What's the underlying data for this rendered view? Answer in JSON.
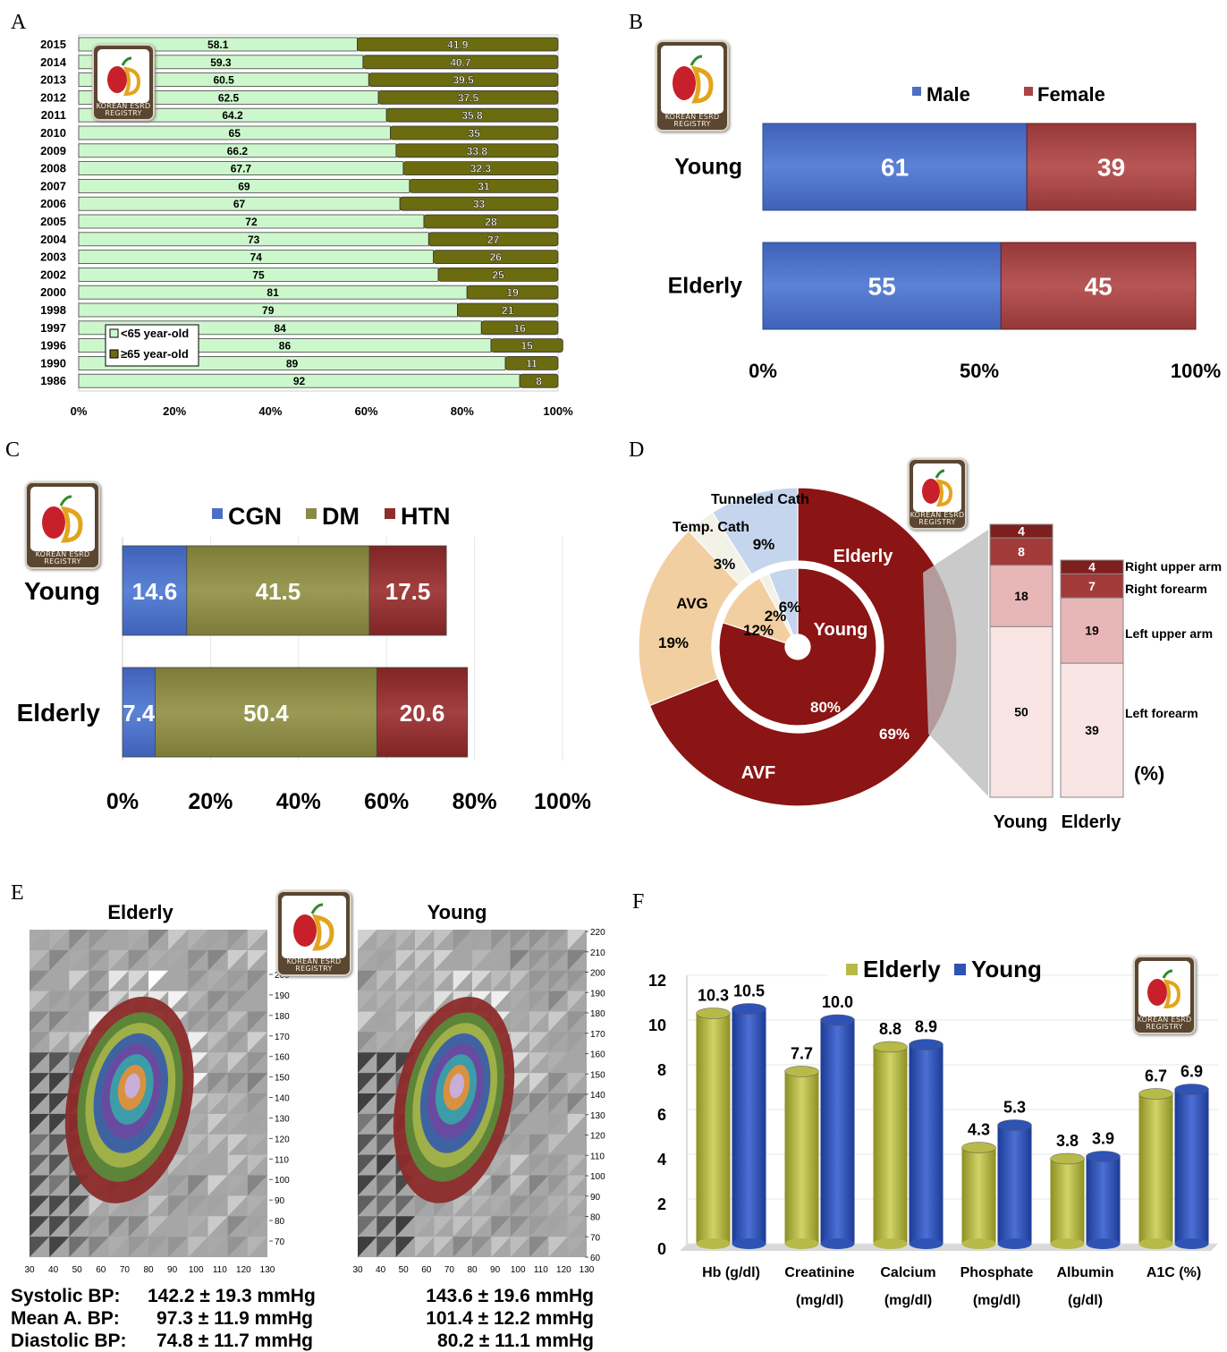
{
  "panel_labels": {
    "a": "A",
    "b": "B",
    "c": "C",
    "d": "D",
    "e": "E",
    "f": "F"
  },
  "logo": {
    "line1": "KOREAN ESRD",
    "line2": "REGISTRY"
  },
  "colors": {
    "light_green": "#ccf7cc",
    "olive": "#6b6b10",
    "male": "#4a6fc4",
    "female": "#a84444",
    "cgn": "#4a6fc4",
    "dm": "#8a8a45",
    "htn": "#8f2d2d",
    "avf": "#8b1414",
    "avg": "#f2cfa0",
    "temp_cath": "#f2f2e6",
    "tunneled_cath": "#c6d5ee",
    "elderly_bar": "#b7b949",
    "young_bar": "#2f52b5"
  },
  "chart_data": [
    {
      "id": "A",
      "type": "bar",
      "orientation": "horizontal",
      "stacked": true,
      "categories": [
        "2015",
        "2014",
        "2013",
        "2012",
        "2011",
        "2010",
        "2009",
        "2008",
        "2007",
        "2006",
        "2005",
        "2004",
        "2003",
        "2002",
        "2000",
        "1998",
        "1997",
        "1996",
        "1990",
        "1986"
      ],
      "series": [
        {
          "name": "<65 year-old",
          "values": [
            58.1,
            59.3,
            60.5,
            62.5,
            64.2,
            65,
            66.2,
            67.7,
            69,
            67,
            72,
            73,
            74,
            75,
            81,
            79,
            84,
            86,
            89,
            92
          ]
        },
        {
          "name": "≥65 year-old",
          "values": [
            41.9,
            40.7,
            39.5,
            37.5,
            35.8,
            35,
            33.8,
            32.3,
            31,
            33,
            28,
            27,
            26,
            25,
            19,
            21,
            16,
            15,
            11,
            8
          ]
        }
      ],
      "value_labels_a": [
        "58.1",
        "59.3",
        "60.5",
        "62.5",
        "64.2",
        "65",
        "66.2",
        "67.7",
        "69",
        "67",
        "72",
        "73",
        "74",
        "75",
        "81",
        "79",
        "84",
        "86",
        "89",
        "92"
      ],
      "value_labels_b": [
        "41.9",
        "40.7",
        "39.5",
        "37.5",
        "35.8",
        "35",
        "33.8",
        "32.3",
        "31",
        "33",
        "28",
        "27",
        "26",
        "25",
        "19",
        "21",
        "16",
        "15",
        "11",
        "8"
      ],
      "xticks": [
        "0%",
        "20%",
        "40%",
        "60%",
        "80%",
        "100%"
      ],
      "xlim": [
        0,
        100
      ],
      "legend": "bottom-left"
    },
    {
      "id": "B",
      "type": "bar",
      "orientation": "horizontal",
      "stacked": true,
      "categories": [
        "Young",
        "Elderly"
      ],
      "series": [
        {
          "name": "Male",
          "values": [
            61,
            55
          ]
        },
        {
          "name": "Female",
          "values": [
            39,
            45
          ]
        }
      ],
      "value_labels_male": [
        "61",
        "55"
      ],
      "value_labels_female": [
        "39",
        "45"
      ],
      "xticks": [
        "0%",
        "50%",
        "100%"
      ],
      "xlim": [
        0,
        100
      ],
      "legend": "top"
    },
    {
      "id": "C",
      "type": "bar",
      "orientation": "horizontal",
      "stacked": true,
      "categories": [
        "Young",
        "Elderly"
      ],
      "series": [
        {
          "name": "CGN",
          "values": [
            14.6,
            7.4
          ]
        },
        {
          "name": "DM",
          "values": [
            41.5,
            50.4
          ]
        },
        {
          "name": "HTN",
          "values": [
            17.5,
            20.6
          ]
        }
      ],
      "value_labels_cgn": [
        "14.6",
        "7.4"
      ],
      "value_labels_dm": [
        "41.5",
        "50.4"
      ],
      "value_labels_htn": [
        "17.5",
        "20.6"
      ],
      "xticks": [
        "0%",
        "20%",
        "40%",
        "60%",
        "80%",
        "100%"
      ],
      "xlim": [
        0,
        100
      ],
      "legend": "top"
    },
    {
      "id": "D",
      "type": "pie",
      "subtype": "nested-donut",
      "outer_name": "Elderly",
      "inner_name": "Young",
      "labels": [
        "Tunneled Cath",
        "Temp. Cath",
        "AVG",
        "AVF"
      ],
      "outer_values": [
        9,
        3,
        19,
        69
      ],
      "inner_values": [
        6,
        2,
        12,
        80
      ],
      "outer_value_labels": [
        "9%",
        "3%",
        "19%",
        "69%"
      ],
      "inner_value_labels": [
        "6%",
        "2%",
        "12%",
        "80%"
      ],
      "breakdown": {
        "categories": [
          "Young",
          "Elderly"
        ],
        "series_labels": [
          "Right upper arm",
          "Right forearm",
          "Left upper arm",
          "Left forearm"
        ],
        "young": [
          4,
          8,
          18,
          50
        ],
        "elderly": [
          4,
          7,
          19,
          39
        ],
        "young_labels": [
          "4",
          "8",
          "18",
          "50"
        ],
        "elderly_labels": [
          "4",
          "7",
          "19",
          "39"
        ],
        "unit_label": "(%)"
      }
    },
    {
      "id": "E",
      "type": "heatmap",
      "maps": [
        {
          "name": "Elderly",
          "xticks": [
            "30",
            "40",
            "50",
            "60",
            "70",
            "80",
            "90",
            "100",
            "110",
            "120",
            "130"
          ],
          "yticks": [
            "70",
            "80",
            "90",
            "100",
            "110",
            "120",
            "130",
            "140",
            "150",
            "160",
            "170",
            "180",
            "190",
            "200"
          ]
        },
        {
          "name": "Young",
          "xticks": [
            "30",
            "40",
            "50",
            "60",
            "70",
            "80",
            "90",
            "100",
            "110",
            "120",
            "130"
          ],
          "yticks": [
            "60",
            "70",
            "80",
            "90",
            "100",
            "110",
            "120",
            "130",
            "140",
            "150",
            "160",
            "170",
            "180",
            "190",
            "200",
            "210",
            "220"
          ]
        }
      ],
      "stats_labels": [
        "Systolic BP:",
        "Mean A. BP:",
        "Diastolic BP:"
      ],
      "elderly_stats": [
        "142.2 ± 19.3 mmHg",
        "97.3 ± 11.9 mmHg",
        "74.8 ± 11.7 mmHg"
      ],
      "young_stats": [
        "143.6 ± 19.6 mmHg",
        "101.4 ± 12.2 mmHg",
        "80.2 ± 11.1 mmHg"
      ]
    },
    {
      "id": "F",
      "type": "bar",
      "orientation": "vertical",
      "categories": [
        [
          "Hb (g/dl)",
          ""
        ],
        [
          "Creatinine",
          "(mg/dl)"
        ],
        [
          "Calcium",
          "(mg/dl)"
        ],
        [
          "Phosphate",
          "(mg/dl)"
        ],
        [
          "Albumin",
          "(g/dl)"
        ],
        [
          "A1C (%)",
          ""
        ]
      ],
      "series": [
        {
          "name": "Elderly",
          "values": [
            10.3,
            7.7,
            8.8,
            4.3,
            3.8,
            6.7
          ]
        },
        {
          "name": "Young",
          "values": [
            10.5,
            10.0,
            8.9,
            5.3,
            3.9,
            6.9
          ]
        }
      ],
      "value_labels_elderly": [
        "10.3",
        "7.7",
        "8.8",
        "4.3",
        "3.8",
        "6.7"
      ],
      "value_labels_young": [
        "10.5",
        "10.0",
        "8.9",
        "5.3",
        "3.9",
        "6.9"
      ],
      "yticks": [
        "0",
        "2",
        "4",
        "6",
        "8",
        "10",
        "12"
      ],
      "ylim": [
        0,
        12
      ],
      "legend": "top"
    }
  ]
}
